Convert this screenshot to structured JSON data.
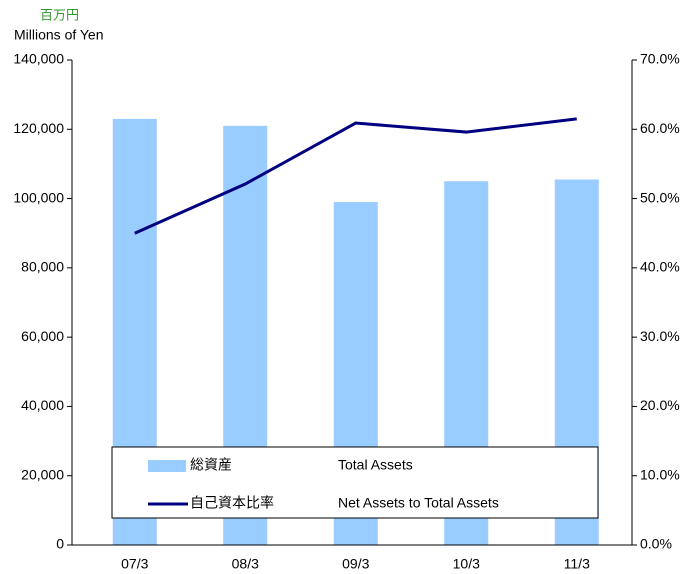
{
  "chart_data": {
    "type": "bar",
    "unit_label_ja": "百万円",
    "y_label": "Millions of Yen",
    "categories": [
      "07/3",
      "08/3",
      "09/3",
      "10/3",
      "11/3"
    ],
    "series": [
      {
        "name": "総資産",
        "name_en": "Total Assets",
        "type": "bar",
        "color": "#99ccff",
        "values": [
          123000,
          121000,
          99000,
          105000,
          105500
        ]
      },
      {
        "name": "自己資本比率",
        "name_en": "Net Assets to Total Assets",
        "type": "line",
        "axis": "y2",
        "color": "#000080",
        "values": [
          45.0,
          52.1,
          60.9,
          59.6,
          61.5
        ]
      }
    ],
    "ylim": [
      0,
      140000
    ],
    "yticks": [
      0,
      {
        "value": 20000,
        "label": "20,000"
      },
      {
        "value": 40000,
        "label": "40,000"
      },
      {
        "value": 60000,
        "label": "60,000"
      },
      {
        "value": 80000,
        "label": "80,000"
      },
      {
        "value": 100000,
        "label": "100,000"
      },
      {
        "value": 120000,
        "label": "120,000"
      },
      {
        "value": 140000,
        "label": "140,000"
      }
    ],
    "y2lim": [
      0,
      70
    ],
    "y2ticks": [
      {
        "value": 0,
        "label": "0.0%"
      },
      {
        "value": 10,
        "label": "10.0%"
      },
      {
        "value": 20,
        "label": "20.0%"
      },
      {
        "value": 30,
        "label": "30.0%"
      },
      {
        "value": 40,
        "label": "40.0%"
      },
      {
        "value": 50,
        "label": "50.0%"
      },
      {
        "value": 60,
        "label": "60.0%"
      },
      {
        "value": 70,
        "label": "70.0%"
      }
    ],
    "grid": false
  }
}
